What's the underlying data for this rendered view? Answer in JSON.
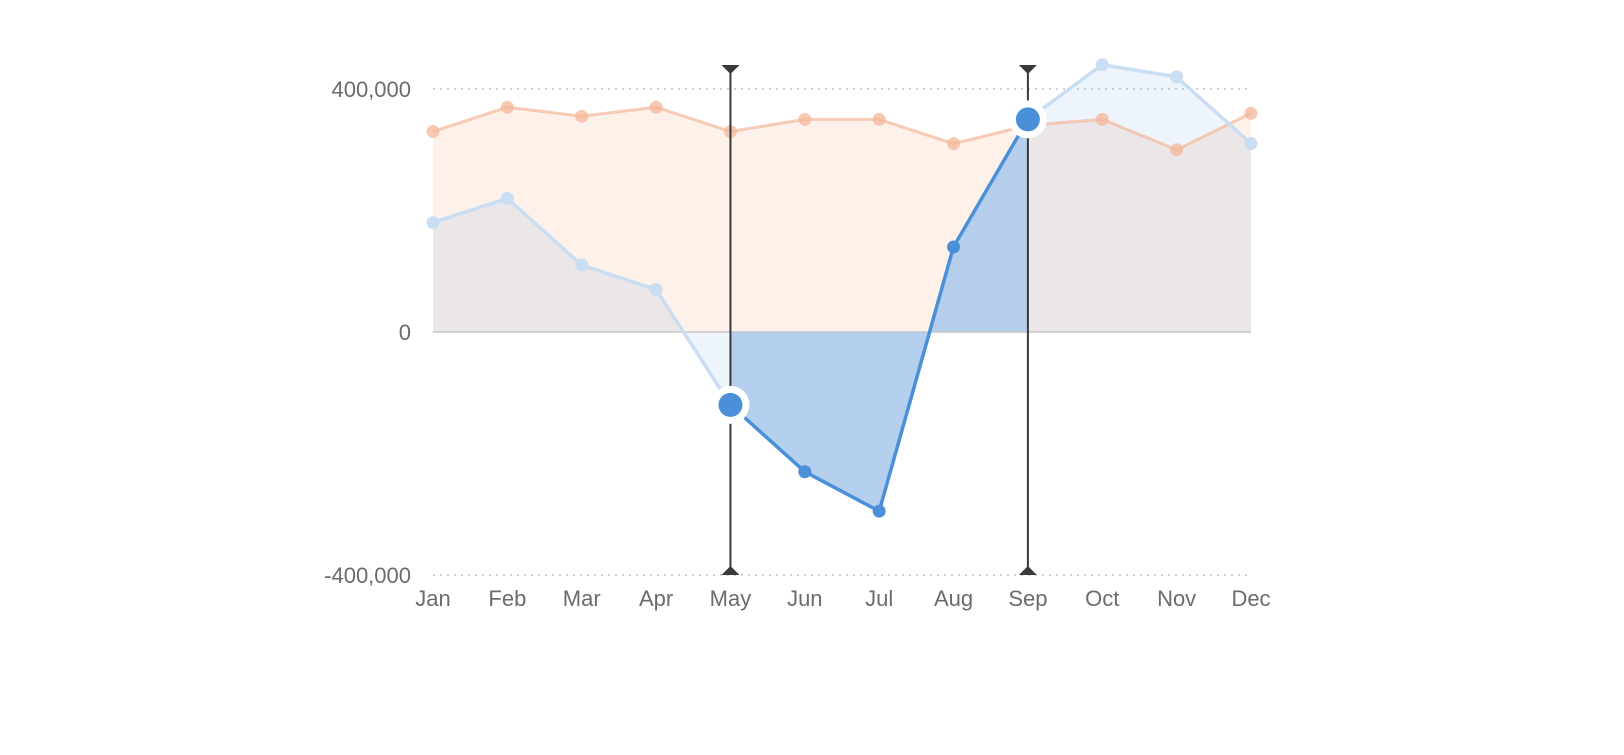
{
  "chart_data": {
    "type": "area",
    "title": "",
    "xlabel": "",
    "ylabel": "",
    "categories": [
      "Jan",
      "Feb",
      "Mar",
      "Apr",
      "May",
      "Jun",
      "Jul",
      "Aug",
      "Sep",
      "Oct",
      "Nov",
      "Dec"
    ],
    "y_ticks": [
      {
        "value": 400000,
        "label": "400,000"
      },
      {
        "value": 0,
        "label": "0"
      },
      {
        "value": -400000,
        "label": "-400,000"
      }
    ],
    "ylim": [
      -400000,
      440000
    ],
    "grid": "dotted horizontal at 400,000 and -400,000; solid baseline at 0",
    "range_selection": {
      "start": "May",
      "end": "Sep"
    },
    "series": [
      {
        "values": [
          330000,
          370000,
          355000,
          370000,
          330000,
          350000,
          350000,
          310000,
          340000,
          350000,
          300000,
          360000
        ],
        "color": "#f4b79a",
        "fill": "#fdf1ea"
      },
      {
        "values": [
          180000,
          220000,
          110000,
          70000,
          -120000,
          -230000,
          -295000,
          140000,
          350000,
          440000,
          420000,
          310000
        ],
        "color": "#4a90d9",
        "fill": "#aecbec",
        "faded_color": "#c9ddf3"
      }
    ]
  }
}
